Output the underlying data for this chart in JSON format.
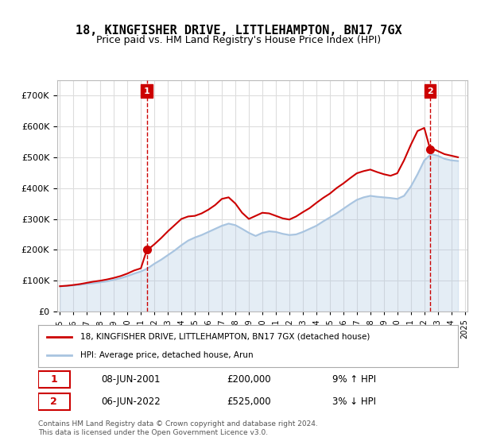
{
  "title": "18, KINGFISHER DRIVE, LITTLEHAMPTON, BN17 7GX",
  "subtitle": "Price paid vs. HM Land Registry's House Price Index (HPI)",
  "legend_line1": "18, KINGFISHER DRIVE, LITTLEHAMPTON, BN17 7GX (detached house)",
  "legend_line2": "HPI: Average price, detached house, Arun",
  "annotation1_label": "1",
  "annotation1_date": "08-JUN-2001",
  "annotation1_price": "£200,000",
  "annotation1_hpi": "9% ↑ HPI",
  "annotation2_label": "2",
  "annotation2_date": "06-JUN-2022",
  "annotation2_price": "£525,000",
  "annotation2_hpi": "3% ↓ HPI",
  "footer": "Contains HM Land Registry data © Crown copyright and database right 2024.\nThis data is licensed under the Open Government Licence v3.0.",
  "sale_color": "#cc0000",
  "hpi_color": "#a8c4e0",
  "sale_marker_color": "#cc0000",
  "annotation_color": "#cc0000",
  "ylim": [
    0,
    750000
  ],
  "yticks": [
    0,
    100000,
    200000,
    300000,
    400000,
    500000,
    600000,
    700000
  ],
  "background_color": "#ffffff",
  "plot_bg_color": "#ffffff",
  "grid_color": "#dddddd",
  "sale1_x": 2001.44,
  "sale1_y": 200000,
  "sale2_x": 2022.44,
  "sale2_y": 525000,
  "hpi_years": [
    1995,
    1995.5,
    1996,
    1996.5,
    1997,
    1997.5,
    1998,
    1998.5,
    1999,
    1999.5,
    2000,
    2000.5,
    2001,
    2001.5,
    2002,
    2002.5,
    2003,
    2003.5,
    2004,
    2004.5,
    2005,
    2005.5,
    2006,
    2006.5,
    2007,
    2007.5,
    2008,
    2008.5,
    2009,
    2009.5,
    2010,
    2010.5,
    2011,
    2011.5,
    2012,
    2012.5,
    2013,
    2013.5,
    2014,
    2014.5,
    2015,
    2015.5,
    2016,
    2016.5,
    2017,
    2017.5,
    2018,
    2018.5,
    2019,
    2019.5,
    2020,
    2020.5,
    2021,
    2021.5,
    2022,
    2022.5,
    2023,
    2023.5,
    2024,
    2024.5
  ],
  "hpi_values": [
    82000,
    83000,
    85000,
    87000,
    90000,
    92000,
    95000,
    98000,
    103000,
    108000,
    115000,
    123000,
    130000,
    140000,
    155000,
    168000,
    183000,
    198000,
    215000,
    230000,
    240000,
    248000,
    258000,
    268000,
    278000,
    285000,
    280000,
    268000,
    255000,
    245000,
    255000,
    260000,
    258000,
    252000,
    248000,
    250000,
    258000,
    268000,
    278000,
    292000,
    305000,
    318000,
    333000,
    348000,
    362000,
    370000,
    375000,
    372000,
    370000,
    368000,
    365000,
    375000,
    405000,
    445000,
    490000,
    510000,
    505000,
    495000,
    490000,
    488000
  ],
  "sale_years": [
    1995.0,
    1995.5,
    1996.0,
    1996.5,
    1997.0,
    1997.5,
    1998.0,
    1998.5,
    1999.0,
    1999.5,
    2000.0,
    2000.5,
    2001.0,
    2001.44,
    2001.5,
    2002.0,
    2002.5,
    2003.0,
    2003.5,
    2004.0,
    2004.5,
    2005.0,
    2005.5,
    2006.0,
    2006.5,
    2007.0,
    2007.5,
    2008.0,
    2008.5,
    2009.0,
    2009.5,
    2010.0,
    2010.5,
    2011.0,
    2011.5,
    2012.0,
    2012.5,
    2013.0,
    2013.5,
    2014.0,
    2014.5,
    2015.0,
    2015.5,
    2016.0,
    2016.5,
    2017.0,
    2017.5,
    2018.0,
    2018.5,
    2019.0,
    2019.5,
    2020.0,
    2020.5,
    2021.0,
    2021.5,
    2022.0,
    2022.44,
    2022.5,
    2023.0,
    2023.5,
    2024.0,
    2024.5
  ],
  "sale_values": [
    82000,
    83500,
    86000,
    89000,
    93000,
    97000,
    100000,
    104000,
    109000,
    115000,
    123000,
    133000,
    140000,
    200000,
    200000,
    218000,
    238000,
    260000,
    280000,
    300000,
    308000,
    310000,
    318000,
    330000,
    345000,
    365000,
    370000,
    350000,
    320000,
    300000,
    310000,
    320000,
    318000,
    310000,
    302000,
    298000,
    308000,
    322000,
    335000,
    352000,
    368000,
    382000,
    400000,
    415000,
    432000,
    448000,
    455000,
    460000,
    452000,
    445000,
    440000,
    448000,
    490000,
    540000,
    585000,
    595000,
    525000,
    530000,
    520000,
    510000,
    505000,
    500000
  ],
  "xlim_min": 1994.8,
  "xlim_max": 2025.2
}
